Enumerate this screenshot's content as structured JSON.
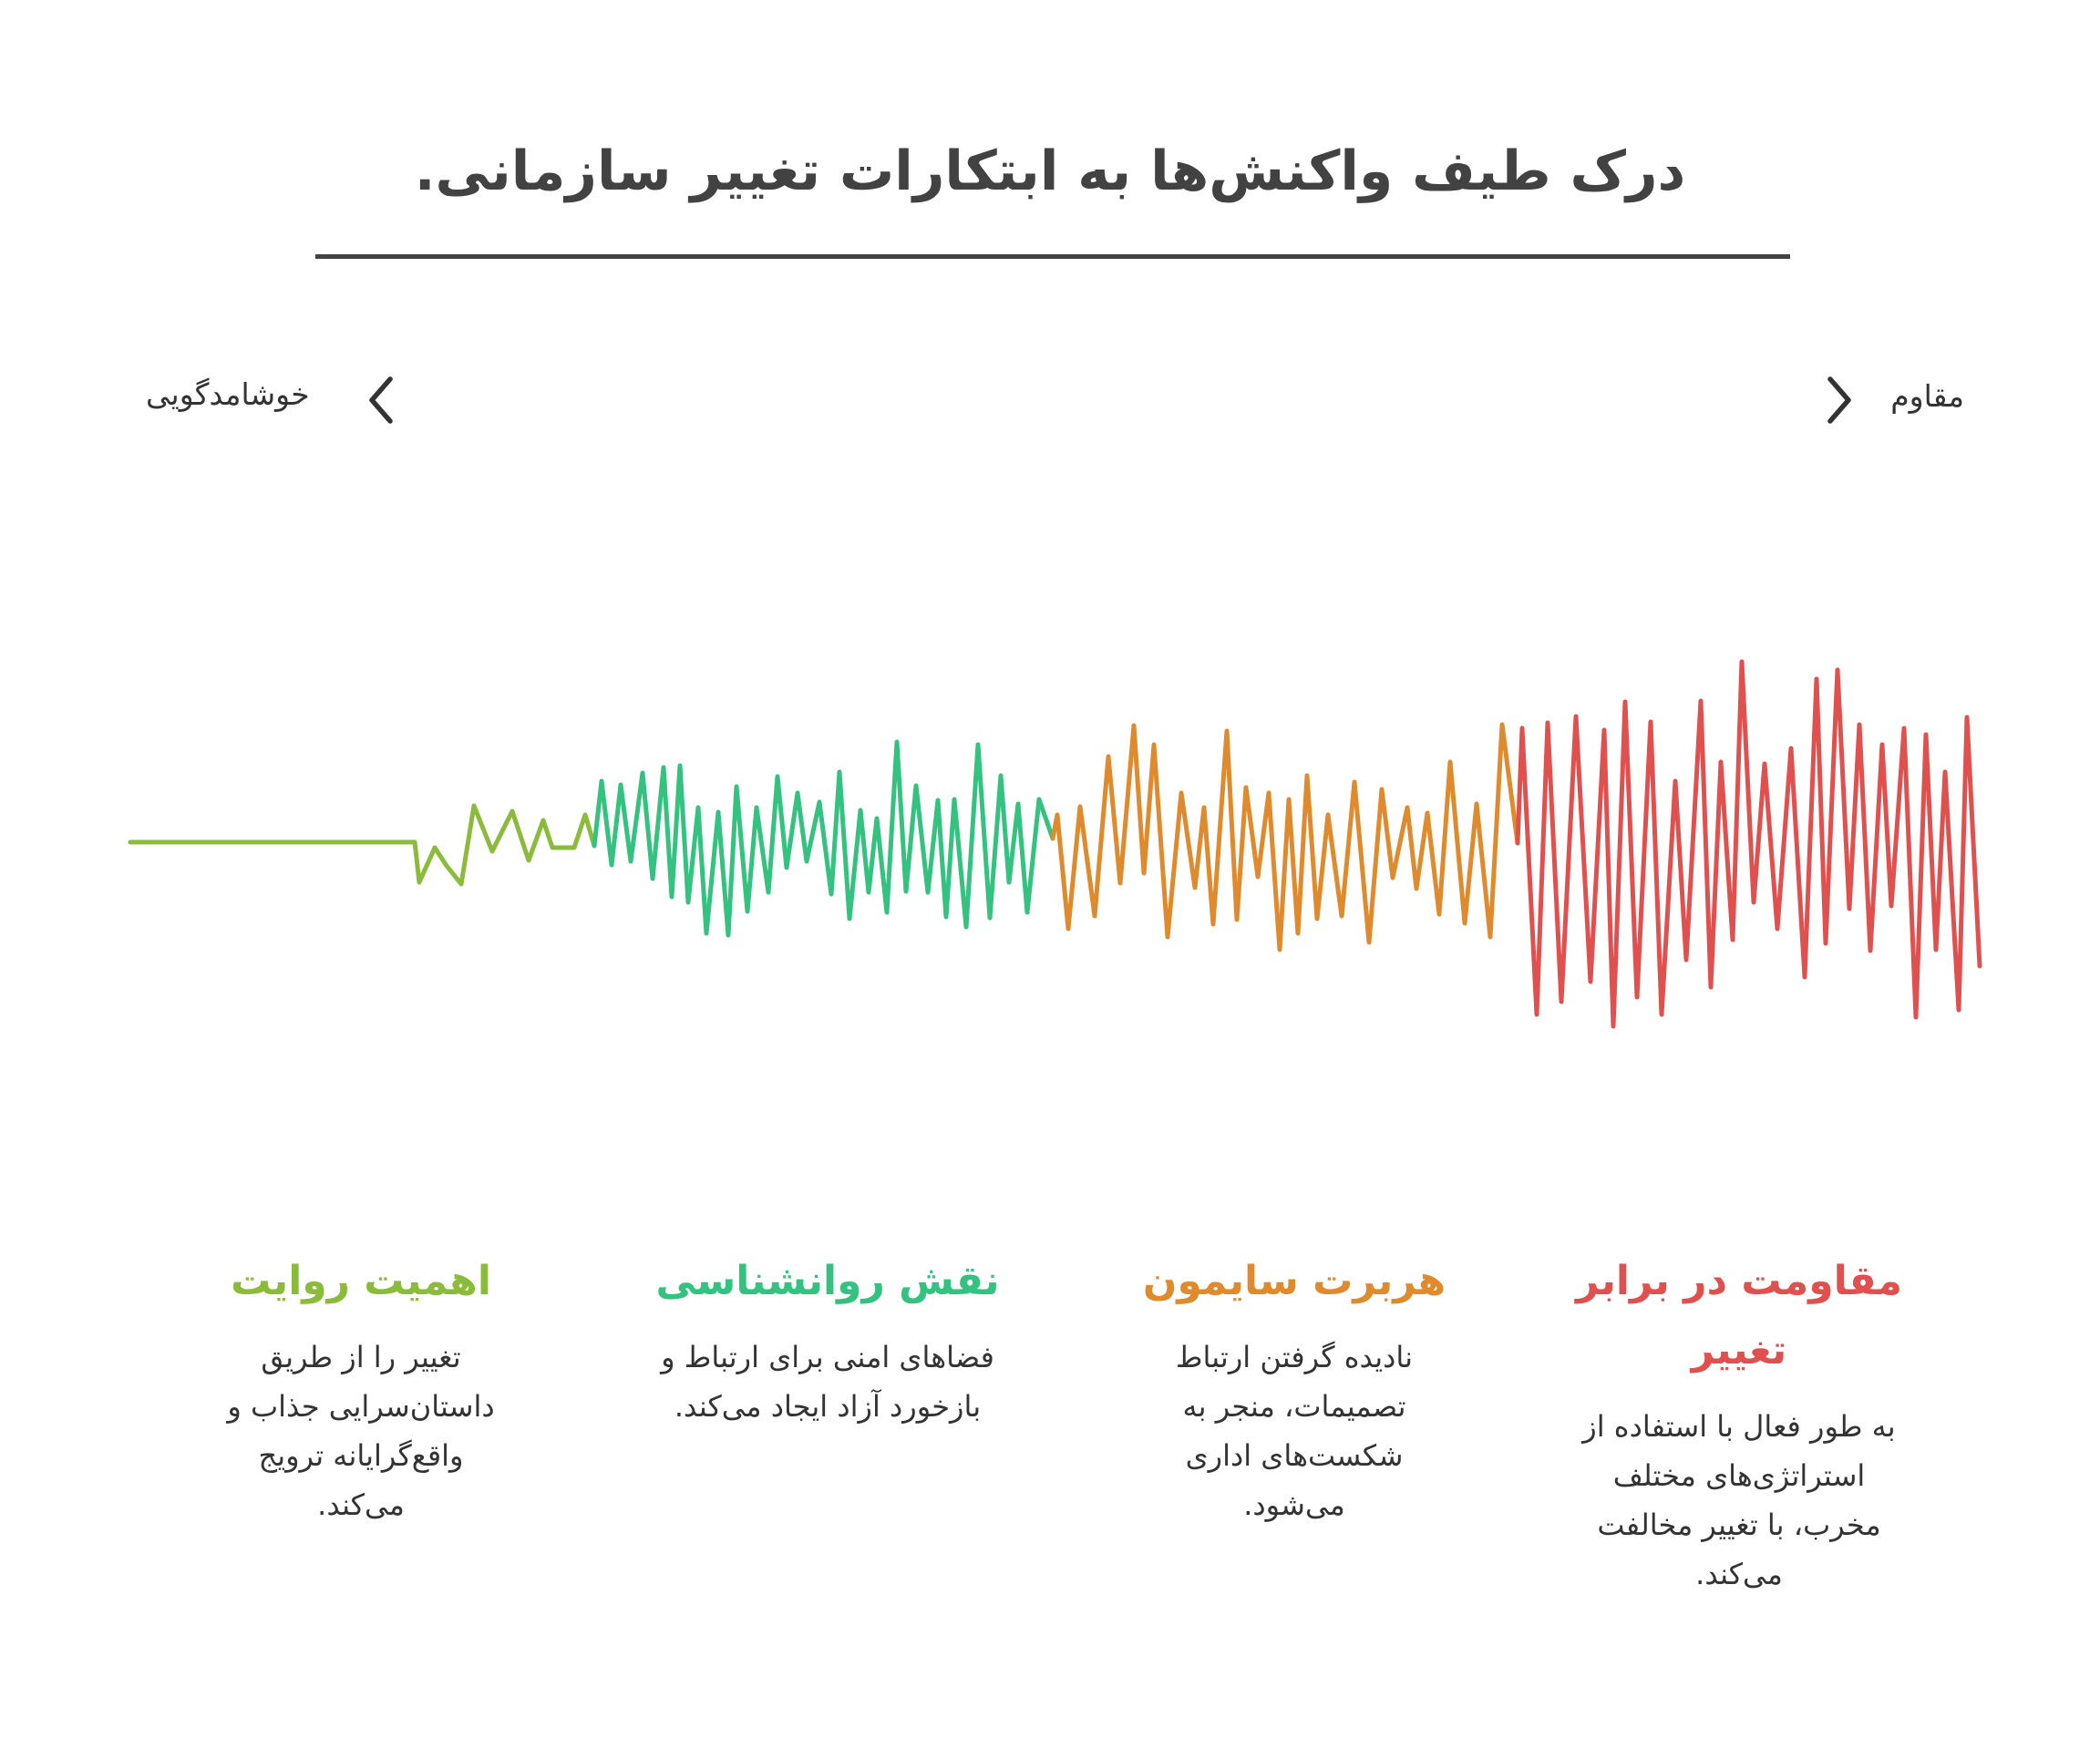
{
  "title": "درک طیف واکنش‌ها به ابتکارات تغییر سازمانی.",
  "spectrum": {
    "left_label": "خوشامدگویی",
    "right_label": "مقاوم",
    "left_icon": "chevron-left-icon",
    "right_icon": "chevron-right-icon",
    "segments": [
      {
        "name": "narrative",
        "color": "#8bbb3a"
      },
      {
        "name": "psychology",
        "color": "#33c27f"
      },
      {
        "name": "simon",
        "color": "#e08a2e"
      },
      {
        "name": "resistance",
        "color": "#e0504e"
      }
    ]
  },
  "cards": {
    "narrative": {
      "title": "اهمیت روایت",
      "text": "تغییر را از طریق داستان‌سرایی جذاب و واقع‌گرایانه ترویج می‌کند.",
      "color": "#8bbb3a"
    },
    "psychology": {
      "title": "نقش روانشناسی",
      "text": "فضاهای امنی برای ارتباط و بازخورد آزاد ایجاد می‌کند.",
      "color": "#33c27f"
    },
    "simon": {
      "title": "هربرت سایمون",
      "text": "نادیده گرفتن ارتباط تصمیمات، منجر به شکست‌های اداری می‌شود.",
      "color": "#e08a2e"
    },
    "resistance": {
      "title": "مقاومت در برابر تغییر",
      "text": "به طور فعال با استفاده از استراتژی‌های مختلف مخرب، با تغییر مخالفت می‌کند.",
      "color": "#e0504e"
    }
  }
}
